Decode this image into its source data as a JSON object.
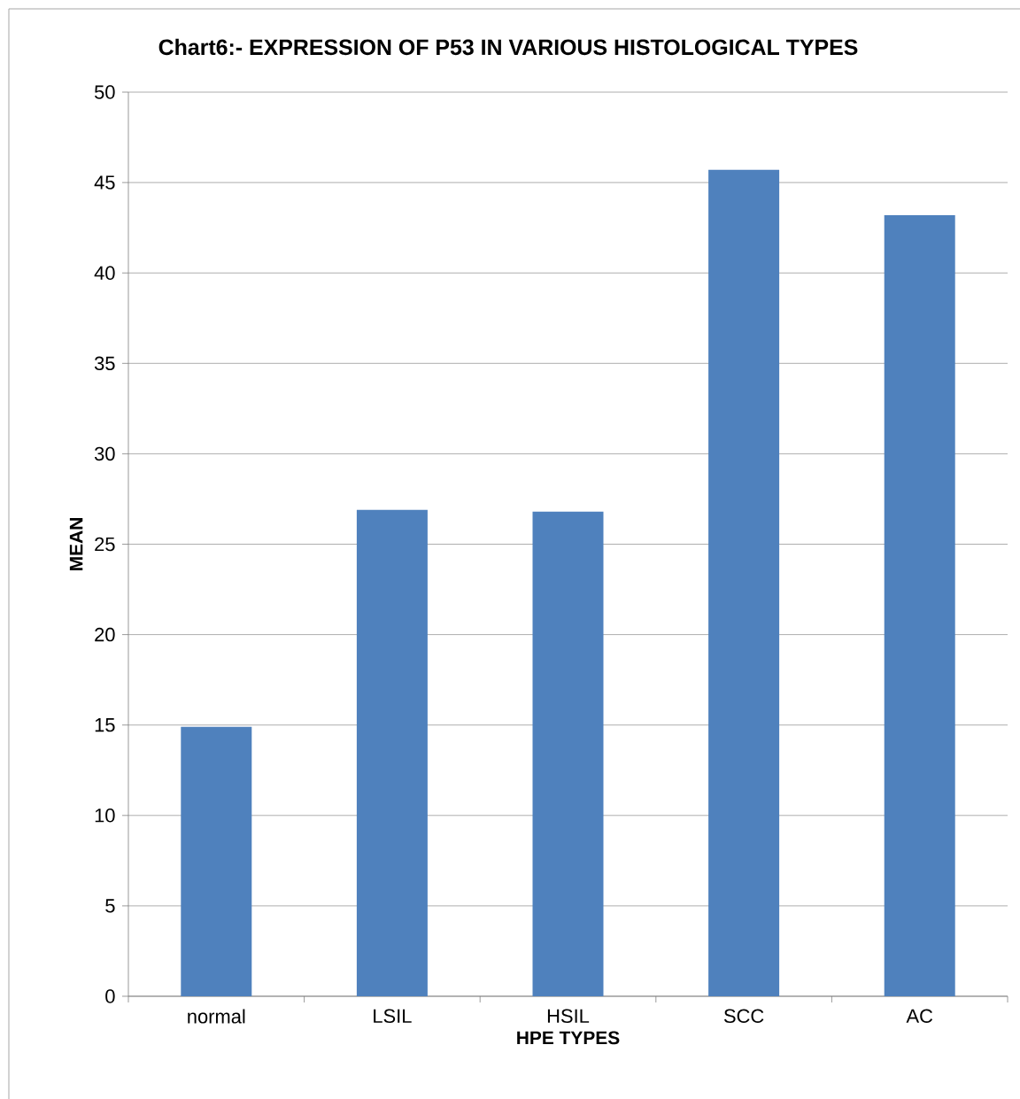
{
  "chart_data": {
    "type": "bar",
    "title": "Chart6:- EXPRESSION OF P53 IN VARIOUS HISTOLOGICAL TYPES",
    "xlabel": "HPE  TYPES",
    "ylabel": "MEAN",
    "categories": [
      "normal",
      "LSIL",
      "HSIL",
      "SCC",
      "AC"
    ],
    "values": [
      14.9,
      26.9,
      26.8,
      45.7,
      43.2
    ],
    "color": "#4f81bd",
    "ylim": [
      0,
      50
    ],
    "yticks": [
      0,
      5,
      10,
      15,
      20,
      25,
      30,
      35,
      40,
      45,
      50
    ],
    "grid": "y"
  }
}
